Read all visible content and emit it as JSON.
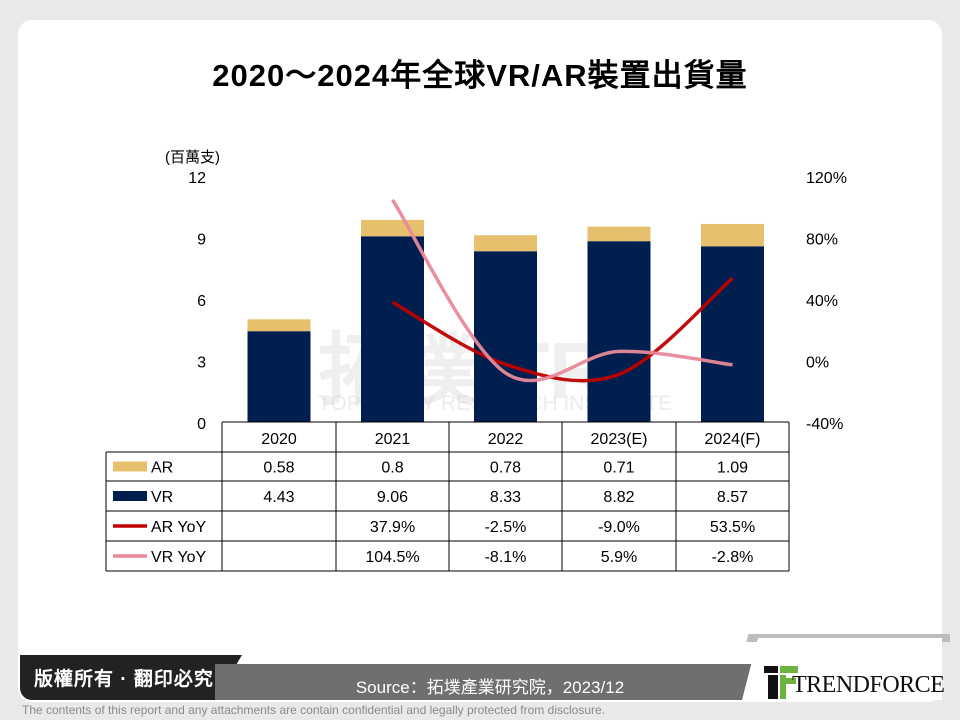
{
  "title": "2020～2024年全球VR/AR裝置出貨量",
  "chart_data": {
    "type": "bar",
    "stacked": true,
    "title": "2020～2024年全球VR/AR裝置出貨量",
    "ylabel": "(百萬支)",
    "categories": [
      "2020",
      "2021",
      "2022",
      "2023(E)",
      "2024(F)"
    ],
    "ylim": [
      0,
      12
    ],
    "yticks": [
      "0",
      "3",
      "6",
      "9",
      "12"
    ],
    "y2lim": [
      -40,
      120
    ],
    "y2ticks": [
      "-40%",
      "0%",
      "40%",
      "80%",
      "120%"
    ],
    "series": [
      {
        "name": "VR",
        "type": "bar",
        "color": "#001f4e",
        "values": [
          4.43,
          9.06,
          8.33,
          8.82,
          8.57
        ],
        "labels": [
          "4.43",
          "9.06",
          "8.33",
          "8.82",
          "8.57"
        ]
      },
      {
        "name": "AR",
        "type": "bar",
        "color": "#e6c06c",
        "values": [
          0.58,
          0.8,
          0.78,
          0.71,
          1.09
        ],
        "labels": [
          "0.58",
          "0.8",
          "0.78",
          "0.71",
          "1.09"
        ]
      },
      {
        "name": "AR YoY",
        "type": "line",
        "axis": "right",
        "color": "#c00000",
        "values": [
          null,
          37.9,
          -2.5,
          -9.0,
          53.5
        ],
        "labels": [
          "",
          "37.9%",
          "-2.5%",
          "-9.0%",
          "53.5%"
        ]
      },
      {
        "name": "VR YoY",
        "type": "line",
        "axis": "right",
        "color": "#e8899a",
        "values": [
          null,
          104.5,
          -8.1,
          5.9,
          -2.8
        ],
        "labels": [
          "",
          "104.5%",
          "-8.1%",
          "5.9%",
          "-2.8%"
        ]
      }
    ],
    "table_rows": [
      "AR",
      "VR",
      "AR YoY",
      "VR YoY"
    ]
  },
  "watermark": "拓墣 TRi TOPOLOGY RESEARCH INSTITUTE",
  "footer": {
    "copyright": "版權所有 · 翻印必究",
    "source": "Source：拓墣產業研究院，2023/12",
    "logo": "TRENDFORCE",
    "disclaimer": "The contents of this report and any attachments are contain confidential and legally protected from disclosure."
  }
}
